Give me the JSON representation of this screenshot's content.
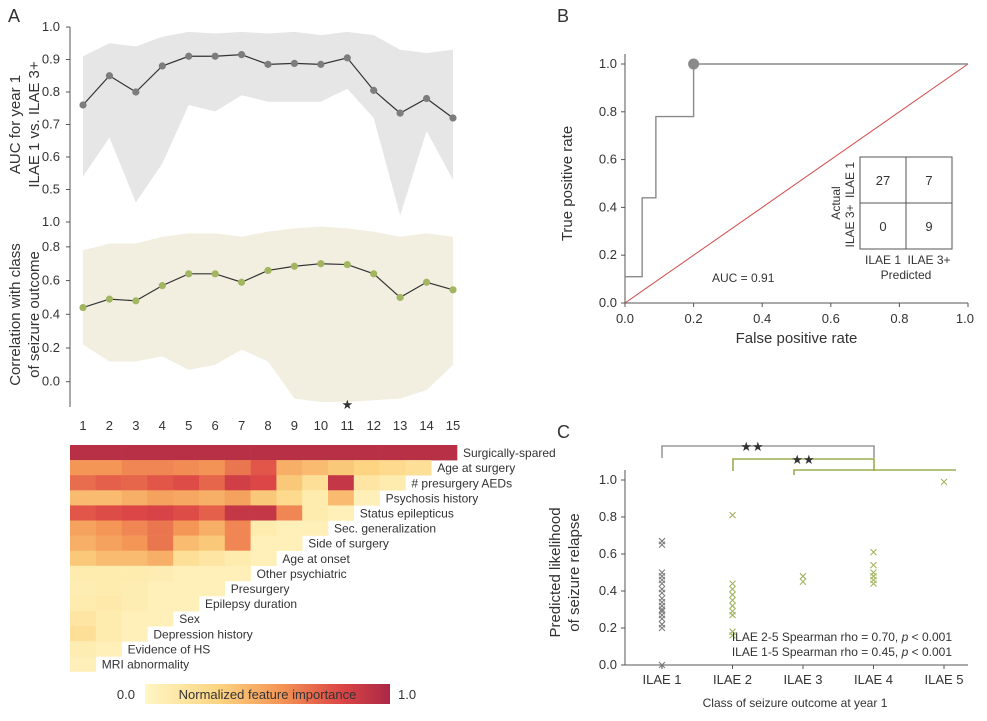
{
  "panel_labels": {
    "a": "A",
    "b": "B",
    "c": "C"
  },
  "colors": {
    "gray_band": "#e6e6e6",
    "green_band": "#f2efe1",
    "green_point": "#a2b560",
    "gray_point": "#7d7d7d",
    "diag_line": "#d14b4b",
    "green_bracket": "#9aad52",
    "gray_bracket": "#9a9a9a"
  },
  "chart_data": [
    {
      "id": "A_top",
      "type": "line",
      "ylabel_lines": [
        "AUC for year 1",
        "ILAE 1 vs. ILAE 3+"
      ],
      "x": [
        1,
        2,
        3,
        4,
        5,
        6,
        7,
        8,
        9,
        10,
        11,
        12,
        13,
        14,
        15
      ],
      "values": [
        0.76,
        0.85,
        0.8,
        0.88,
        0.91,
        0.91,
        0.915,
        0.885,
        0.888,
        0.885,
        0.905,
        0.805,
        0.735,
        0.78,
        0.72
      ],
      "band_upper": [
        0.91,
        0.95,
        0.94,
        0.97,
        0.985,
        0.98,
        0.985,
        0.98,
        0.985,
        0.975,
        0.985,
        0.975,
        0.93,
        0.92,
        0.93
      ],
      "band_lower": [
        0.54,
        0.66,
        0.46,
        0.58,
        0.76,
        0.74,
        0.79,
        0.77,
        0.77,
        0.77,
        0.81,
        0.72,
        0.42,
        0.68,
        0.53
      ],
      "ylim": [
        0.4,
        1.0
      ],
      "yticks": [
        "0.4",
        "0.5",
        "0.6",
        "0.7",
        "0.8",
        "0.9",
        "1.0"
      ]
    },
    {
      "id": "A_mid",
      "type": "line",
      "ylabel_lines": [
        "Correlation with class",
        "of seizure outcome"
      ],
      "x": [
        1,
        2,
        3,
        4,
        5,
        6,
        7,
        8,
        9,
        10,
        11,
        12,
        13,
        14,
        15
      ],
      "values": [
        0.44,
        0.49,
        0.48,
        0.57,
        0.64,
        0.64,
        0.59,
        0.66,
        0.685,
        0.7,
        0.695,
        0.64,
        0.5,
        0.59,
        0.545
      ],
      "band_upper": [
        0.78,
        0.82,
        0.82,
        0.86,
        0.88,
        0.88,
        0.86,
        0.89,
        0.91,
        0.92,
        0.91,
        0.89,
        0.86,
        0.88,
        0.86
      ],
      "band_lower": [
        0.22,
        0.12,
        0.12,
        0.15,
        0.07,
        0.1,
        0.19,
        0.12,
        -0.1,
        -0.12,
        -0.12,
        -0.11,
        -0.1,
        -0.05,
        0.1
      ],
      "ylim": [
        -0.15,
        0.9
      ],
      "yticks": [
        "0.0",
        "0.2",
        "0.4",
        "0.6",
        "0.8"
      ],
      "xticks": [
        "1",
        "2",
        "3",
        "4",
        "5",
        "6",
        "7",
        "8",
        "9",
        "10",
        "11",
        "12",
        "13",
        "14",
        "15"
      ],
      "marker": {
        "x": 11,
        "symbol": "★"
      }
    },
    {
      "id": "A_heatmap",
      "type": "heatmap",
      "columns": 15,
      "features": [
        "Surgically-spared",
        "Age at surgery",
        "# presurgery AEDs",
        "Psychosis history",
        "Status epilepticus",
        "Sec. generalization",
        "Side of surgery",
        "Age at onset",
        "Other psychiatric",
        "Presurgery",
        "Epilepsy duration",
        "Sex",
        "Depression history",
        "Evidence of HS",
        "MRI abnormality"
      ],
      "values": [
        [
          0.95,
          0.95,
          0.95,
          0.95,
          0.95,
          0.95,
          0.95,
          0.95,
          0.95,
          0.95,
          0.95,
          0.95,
          0.95,
          0.95,
          0.95
        ],
        [
          0.55,
          0.55,
          0.6,
          0.6,
          0.58,
          0.56,
          0.65,
          0.75,
          0.45,
          0.4,
          0.35,
          0.3,
          0.25,
          0.2
        ],
        [
          0.68,
          0.72,
          0.7,
          0.75,
          0.78,
          0.7,
          0.85,
          0.8,
          0.35,
          0.2,
          0.9,
          0.15,
          0.1
        ],
        [
          0.4,
          0.4,
          0.45,
          0.5,
          0.48,
          0.45,
          0.5,
          0.35,
          0.25,
          0.1,
          0.4,
          0.05
        ],
        [
          0.75,
          0.78,
          0.8,
          0.82,
          0.78,
          0.72,
          0.9,
          0.9,
          0.6,
          0.1,
          0.05
        ],
        [
          0.5,
          0.55,
          0.6,
          0.65,
          0.55,
          0.45,
          0.6,
          0.1,
          0.05,
          0.05
        ],
        [
          0.45,
          0.5,
          0.55,
          0.65,
          0.4,
          0.35,
          0.6,
          0.05,
          0.05
        ],
        [
          0.35,
          0.4,
          0.4,
          0.45,
          0.2,
          0.15,
          0.1,
          0.05
        ],
        [
          0.1,
          0.1,
          0.1,
          0.08,
          0.05,
          0.05,
          0.05
        ],
        [
          0.08,
          0.1,
          0.08,
          0.05,
          0.05,
          0.05
        ],
        [
          0.1,
          0.12,
          0.08,
          0.05,
          0.05
        ],
        [
          0.15,
          0.1,
          0.05,
          0.05
        ],
        [
          0.2,
          0.1,
          0.05
        ],
        [
          0.08,
          0.05
        ],
        [
          0.05
        ]
      ],
      "colorbar_label": "Normalized feature importance",
      "colorbar_min": "0.0",
      "colorbar_max": "1.0"
    },
    {
      "id": "B_roc",
      "type": "line",
      "xlabel": "False positive rate",
      "ylabel": "True positive rate",
      "roc_x": [
        0,
        0.05,
        0.05,
        0.09,
        0.09,
        0.2,
        0.2,
        1.0
      ],
      "roc_y": [
        0.11,
        0.11,
        0.44,
        0.44,
        0.78,
        0.78,
        1.0,
        1.0
      ],
      "highlight": {
        "x": 0.2,
        "y": 1.0
      },
      "xlim": [
        0,
        1
      ],
      "ylim": [
        0,
        1
      ],
      "xticks": [
        "0.0",
        "0.2",
        "0.4",
        "0.6",
        "0.8",
        "1.0"
      ],
      "yticks": [
        "0.0",
        "0.2",
        "0.4",
        "0.6",
        "0.8",
        "1.0"
      ],
      "auc_label": "AUC = 0.91",
      "confusion": {
        "actual_label": "Actual",
        "predicted_label": "Predicted",
        "row_labels": [
          "ILAE 1",
          "ILAE 3+"
        ],
        "col_labels": [
          "ILAE 1",
          "ILAE 3+"
        ],
        "cells": [
          "27",
          "7",
          "0",
          "9"
        ]
      }
    },
    {
      "id": "C_scatter",
      "type": "scatter",
      "xlabel": "Class of seizure outcome at year 1",
      "ylabel_lines": [
        "Predicted likelihood",
        "of seizure relapse"
      ],
      "categories": [
        "ILAE 1",
        "ILAE 2",
        "ILAE 3",
        "ILAE 4",
        "ILAE 5"
      ],
      "yticks": [
        "0.0",
        "0.2",
        "0.4",
        "0.6",
        "0.8",
        "1.0"
      ],
      "ylim": [
        0,
        1
      ],
      "points": [
        {
          "c": 0,
          "ys": [
            0.67,
            0.65,
            0.5,
            0.48,
            0.46,
            0.44,
            0.41,
            0.39,
            0.36,
            0.34,
            0.32,
            0.3,
            0.29,
            0.27,
            0.25,
            0.22,
            0.2,
            0.0
          ],
          "color": "gray"
        },
        {
          "c": 1,
          "ys": [
            0.81,
            0.44,
            0.41,
            0.38,
            0.35,
            0.32,
            0.29,
            0.27,
            0.18,
            0.16
          ],
          "color": "green"
        },
        {
          "c": 2,
          "ys": [
            0.48,
            0.45
          ],
          "color": "green"
        },
        {
          "c": 3,
          "ys": [
            0.61,
            0.54,
            0.5,
            0.48,
            0.46,
            0.44
          ],
          "color": "green"
        },
        {
          "c": 4,
          "ys": [
            0.99
          ],
          "color": "green"
        }
      ],
      "legend_green": "ILAE 2-5 Spearman rho = 0.70, ",
      "legend_gray": "ILAE 1-5 Spearman rho = 0.45, ",
      "p_letter": "p",
      "p_value": " < 0.001",
      "stars": "★★"
    }
  ]
}
